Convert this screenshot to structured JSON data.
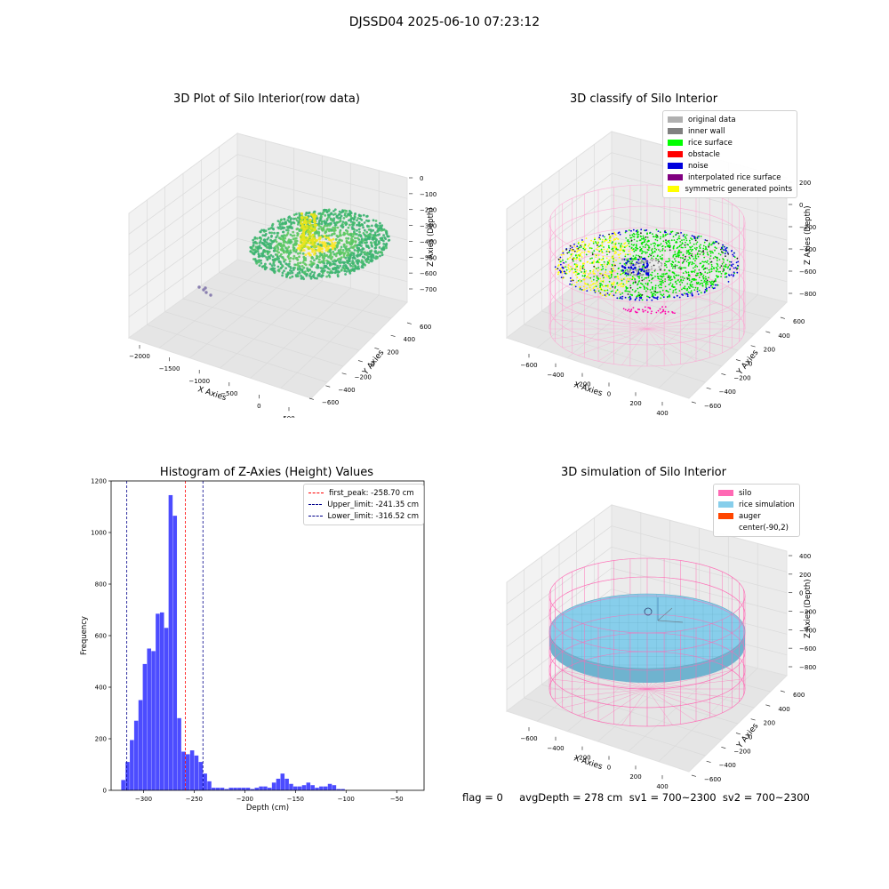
{
  "figure": {
    "suptitle": "DJSSD04 2025-06-10 07:23:12"
  },
  "status_line": "flag = 0     avgDepth = 278 cm  sv1 = 700~2300  sv2 = 700~2300",
  "chart_data": [
    {
      "type": "scatter3d",
      "title": "3D Plot of Silo Interior(row data)",
      "xlabel": "X Axies",
      "ylabel": "Y Axies",
      "zlabel": "Z Axies (Depth)",
      "x_ticks": [
        "−2000",
        "−1500",
        "−1000",
        "−500",
        "0",
        "500"
      ],
      "y_ticks": [
        "−600",
        "−400",
        "−200",
        "0",
        "200",
        "400",
        "600"
      ],
      "z_ticks": [
        "0",
        "−100",
        "−200",
        "−300",
        "−400",
        "−500",
        "−600",
        "−700"
      ],
      "xlim": [
        -2200,
        600
      ],
      "ylim": [
        -650,
        700
      ],
      "zlim": [
        -780,
        0
      ],
      "colormap": [
        "#440154",
        "#21918c",
        "#5ec962",
        "#fde725"
      ],
      "description_points": {
        "surface_center_x": -250,
        "surface_center_y": 50,
        "surface_depth": -270
      }
    },
    {
      "type": "scatter3d",
      "title": "3D classify of Silo Interior",
      "xlabel": "X Axies",
      "ylabel": "Y Axies",
      "zlabel": "Z Axies (Depth)",
      "x_ticks": [
        "−600",
        "−400",
        "−200",
        "0",
        "200",
        "400"
      ],
      "y_ticks": [
        "−600",
        "−400",
        "−200",
        "0",
        "200",
        "400",
        "600"
      ],
      "z_ticks": [
        "200",
        "0",
        "−200",
        "−400",
        "−600",
        "−800"
      ],
      "legend": [
        {
          "label": "original data",
          "color": "#b0b0b0"
        },
        {
          "label": "inner wall",
          "color": "#808080"
        },
        {
          "label": "rice surface",
          "color": "#00ff00"
        },
        {
          "label": "obstacle",
          "color": "#ff0000"
        },
        {
          "label": "noise",
          "color": "#0000dd"
        },
        {
          "label": "interpolated rice surface",
          "color": "#800080"
        },
        {
          "label": "symmetric generated points",
          "color": "#ffff00"
        }
      ]
    },
    {
      "type": "bar",
      "title": "Histogram of Z-Axies (Height) Values",
      "xlabel": "Depth (cm)",
      "ylabel": "Frequency",
      "xlim": [
        -332,
        -23
      ],
      "ylim": [
        0,
        1200
      ],
      "x_ticks": [
        -300,
        -250,
        -200,
        -150,
        -100,
        -50
      ],
      "y_ticks": [
        0,
        200,
        400,
        600,
        800,
        1000,
        1200
      ],
      "bin_start": -322,
      "bin_width": 4.25,
      "values": [
        40,
        110,
        195,
        270,
        350,
        490,
        550,
        540,
        685,
        690,
        630,
        1145,
        1065,
        280,
        150,
        140,
        155,
        135,
        110,
        65,
        35,
        10,
        10,
        10,
        5,
        10,
        10,
        10,
        10,
        10,
        5,
        10,
        15,
        15,
        10,
        30,
        45,
        65,
        45,
        25,
        15,
        15,
        20,
        30,
        20,
        10,
        15,
        15,
        25,
        20,
        5,
        5
      ],
      "bar_color": "#0000ff",
      "vlines": [
        {
          "label": "first_peak: -258.70 cm",
          "x": -258.7,
          "color": "#ff0000"
        },
        {
          "label": "Upper_limit: -241.35 cm",
          "x": -241.35,
          "color": "#00008b"
        },
        {
          "label": "Lower_limit: -316.52 cm",
          "x": -316.52,
          "color": "#00008b"
        }
      ],
      "legend_placement": "top-right"
    },
    {
      "type": "surface3d",
      "title": "3D simulation of Silo Interior",
      "xlabel": "X Axies",
      "ylabel": "Y Axies",
      "zlabel": "Z Axies (Depth)",
      "x_ticks": [
        "−600",
        "−400",
        "−200",
        "0",
        "200",
        "400"
      ],
      "y_ticks": [
        "−600",
        "−400",
        "−200",
        "0",
        "200",
        "400",
        "600"
      ],
      "z_ticks": [
        "400",
        "200",
        "0",
        "−200",
        "−400",
        "−600",
        "−800"
      ],
      "legend": [
        {
          "label": "silo",
          "color": "#ff69b4"
        },
        {
          "label": "rice simulation",
          "color": "#87ceeb"
        },
        {
          "label": "auger",
          "color": "#ff4500"
        },
        {
          "label": "center(-90,2)",
          "color": ""
        }
      ]
    }
  ]
}
